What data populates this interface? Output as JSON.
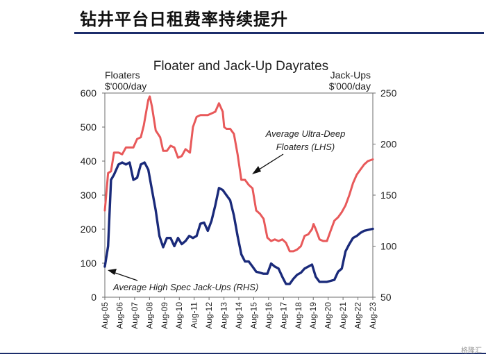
{
  "header": {
    "title": "钻井平台日租费率持续提升"
  },
  "watermark": "格隆汇",
  "chart_data": {
    "type": "line",
    "title": "Floater and Jack-Up Dayrates",
    "left_axis_title": [
      "Floaters",
      "$'000/day"
    ],
    "right_axis_title": [
      "Jack-Ups",
      "$'000/day"
    ],
    "ylim_left": [
      0,
      600
    ],
    "ylim_right": [
      50,
      250
    ],
    "yticks_left": [
      0,
      100,
      200,
      300,
      400,
      500,
      600
    ],
    "yticks_right": [
      50,
      100,
      150,
      200,
      250
    ],
    "xlim": [
      2005.583,
      2023.583
    ],
    "xticks": [
      "Aug-05",
      "Aug-06",
      "Aug-07",
      "Aug-08",
      "Aug-09",
      "Aug-10",
      "Aug-11",
      "Aug-12",
      "Aug-13",
      "Aug-14",
      "Aug-15",
      "Aug-16",
      "Aug-17",
      "Aug-18",
      "Aug-19",
      "Aug-20",
      "Aug-21",
      "Aug-22",
      "Aug-23"
    ],
    "grid": false,
    "series": [
      {
        "name": "Average Ultra-Deep Floaters (LHS)",
        "axis": "left",
        "color": "#e8595a",
        "points": [
          [
            2005.583,
            255
          ],
          [
            2005.8,
            365
          ],
          [
            2006.0,
            370
          ],
          [
            2006.2,
            425
          ],
          [
            2006.5,
            425
          ],
          [
            2006.75,
            420
          ],
          [
            2007.0,
            440
          ],
          [
            2007.3,
            440
          ],
          [
            2007.5,
            440
          ],
          [
            2007.75,
            465
          ],
          [
            2008.0,
            470
          ],
          [
            2008.2,
            505
          ],
          [
            2008.5,
            580
          ],
          [
            2008.6,
            590
          ],
          [
            2008.75,
            560
          ],
          [
            2009.0,
            490
          ],
          [
            2009.3,
            470
          ],
          [
            2009.5,
            430
          ],
          [
            2009.75,
            430
          ],
          [
            2010.0,
            445
          ],
          [
            2010.25,
            440
          ],
          [
            2010.5,
            410
          ],
          [
            2010.75,
            415
          ],
          [
            2011.0,
            435
          ],
          [
            2011.3,
            425
          ],
          [
            2011.5,
            500
          ],
          [
            2011.75,
            530
          ],
          [
            2012.0,
            535
          ],
          [
            2012.5,
            535
          ],
          [
            2012.75,
            540
          ],
          [
            2013.0,
            545
          ],
          [
            2013.25,
            570
          ],
          [
            2013.5,
            545
          ],
          [
            2013.6,
            500
          ],
          [
            2013.75,
            495
          ],
          [
            2014.0,
            495
          ],
          [
            2014.25,
            480
          ],
          [
            2014.5,
            420
          ],
          [
            2014.75,
            345
          ],
          [
            2015.0,
            345
          ],
          [
            2015.25,
            330
          ],
          [
            2015.5,
            320
          ],
          [
            2015.75,
            255
          ],
          [
            2016.0,
            245
          ],
          [
            2016.25,
            230
          ],
          [
            2016.5,
            175
          ],
          [
            2016.75,
            165
          ],
          [
            2017.0,
            170
          ],
          [
            2017.25,
            165
          ],
          [
            2017.5,
            170
          ],
          [
            2017.75,
            160
          ],
          [
            2018.0,
            135
          ],
          [
            2018.25,
            135
          ],
          [
            2018.5,
            140
          ],
          [
            2018.75,
            150
          ],
          [
            2019.0,
            180
          ],
          [
            2019.25,
            185
          ],
          [
            2019.5,
            200
          ],
          [
            2019.6,
            215
          ],
          [
            2019.75,
            200
          ],
          [
            2020.0,
            170
          ],
          [
            2020.25,
            165
          ],
          [
            2020.5,
            165
          ],
          [
            2020.75,
            195
          ],
          [
            2021.0,
            225
          ],
          [
            2021.25,
            235
          ],
          [
            2021.5,
            250
          ],
          [
            2021.75,
            270
          ],
          [
            2022.0,
            300
          ],
          [
            2022.25,
            335
          ],
          [
            2022.5,
            360
          ],
          [
            2022.75,
            375
          ],
          [
            2023.0,
            390
          ],
          [
            2023.25,
            400
          ],
          [
            2023.583,
            405
          ]
        ]
      },
      {
        "name": "Average High Spec Jack-Ups (RHS)",
        "axis": "right",
        "color": "#1a2a7a",
        "points": [
          [
            2005.583,
            80
          ],
          [
            2005.8,
            100
          ],
          [
            2006.0,
            165
          ],
          [
            2006.2,
            170
          ],
          [
            2006.5,
            180
          ],
          [
            2006.75,
            182
          ],
          [
            2007.0,
            180
          ],
          [
            2007.25,
            182
          ],
          [
            2007.5,
            165
          ],
          [
            2007.75,
            167
          ],
          [
            2008.0,
            180
          ],
          [
            2008.25,
            182
          ],
          [
            2008.5,
            175
          ],
          [
            2008.75,
            155
          ],
          [
            2009.0,
            135
          ],
          [
            2009.25,
            110
          ],
          [
            2009.5,
            99
          ],
          [
            2009.75,
            108
          ],
          [
            2010.0,
            108
          ],
          [
            2010.25,
            100
          ],
          [
            2010.5,
            108
          ],
          [
            2010.75,
            102
          ],
          [
            2011.0,
            105
          ],
          [
            2011.25,
            110
          ],
          [
            2011.5,
            108
          ],
          [
            2011.75,
            110
          ],
          [
            2012.0,
            122
          ],
          [
            2012.25,
            123
          ],
          [
            2012.5,
            115
          ],
          [
            2012.75,
            125
          ],
          [
            2013.0,
            140
          ],
          [
            2013.25,
            157
          ],
          [
            2013.5,
            155
          ],
          [
            2013.75,
            150
          ],
          [
            2014.0,
            145
          ],
          [
            2014.25,
            130
          ],
          [
            2014.5,
            110
          ],
          [
            2014.75,
            92
          ],
          [
            2015.0,
            85
          ],
          [
            2015.25,
            85
          ],
          [
            2015.5,
            80
          ],
          [
            2015.75,
            75
          ],
          [
            2016.0,
            74
          ],
          [
            2016.25,
            73
          ],
          [
            2016.5,
            73
          ],
          [
            2016.75,
            83
          ],
          [
            2017.0,
            80
          ],
          [
            2017.25,
            78
          ],
          [
            2017.5,
            70
          ],
          [
            2017.75,
            63
          ],
          [
            2018.0,
            63
          ],
          [
            2018.25,
            68
          ],
          [
            2018.5,
            72
          ],
          [
            2018.75,
            74
          ],
          [
            2019.0,
            78
          ],
          [
            2019.25,
            80
          ],
          [
            2019.5,
            82
          ],
          [
            2019.75,
            70
          ],
          [
            2020.0,
            65
          ],
          [
            2020.25,
            65
          ],
          [
            2020.5,
            65
          ],
          [
            2020.75,
            66
          ],
          [
            2021.0,
            67
          ],
          [
            2021.25,
            75
          ],
          [
            2021.5,
            78
          ],
          [
            2021.75,
            95
          ],
          [
            2022.0,
            102
          ],
          [
            2022.25,
            108
          ],
          [
            2022.5,
            110
          ],
          [
            2022.75,
            113
          ],
          [
            2023.0,
            115
          ],
          [
            2023.583,
            117
          ]
        ]
      }
    ],
    "annotations": [
      {
        "lines": [
          "Average Ultra-Deep",
          "Floaters (LHS)"
        ],
        "series": 0
      },
      {
        "lines": [
          "Average High Spec Jack-Ups (RHS)"
        ],
        "series": 1
      }
    ]
  }
}
